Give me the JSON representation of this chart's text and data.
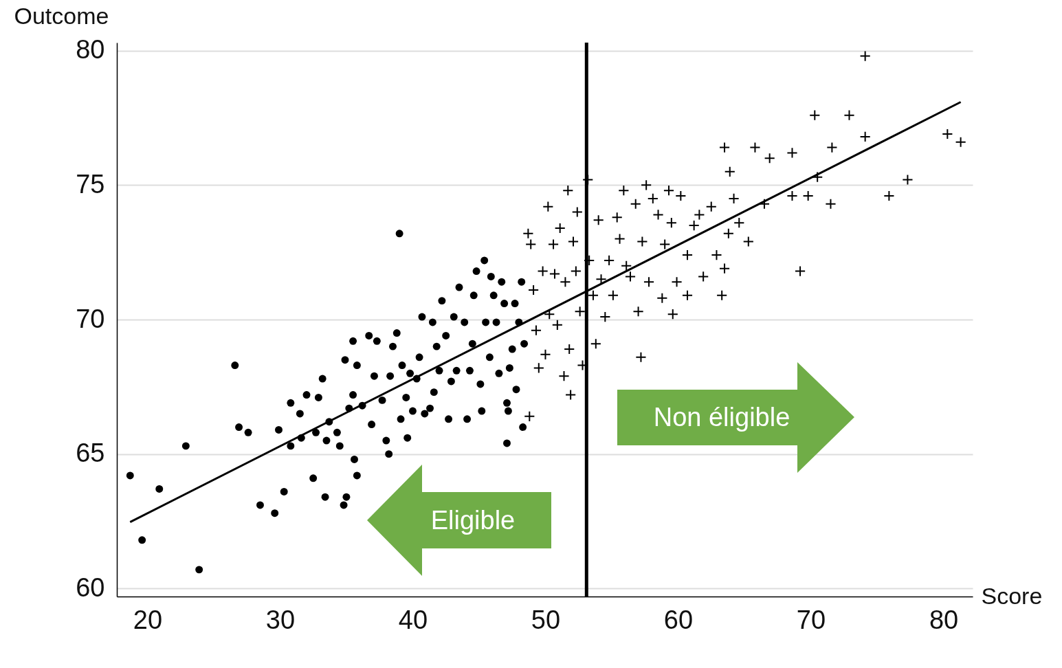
{
  "chart_data": {
    "type": "scatter",
    "xlabel": "Score",
    "ylabel": "Outcome",
    "xlim": [
      17.7,
      82.2
    ],
    "ylim": [
      59.7,
      80.3
    ],
    "xticks": [
      20,
      30,
      40,
      50,
      60,
      70,
      80
    ],
    "yticks": [
      60,
      65,
      70,
      75,
      80
    ],
    "grid": "y",
    "annotations": [
      "Non éligible",
      "Eligible"
    ],
    "ref_lines": [
      {
        "axis": "x",
        "value": 53.1,
        "color": "#000000"
      }
    ],
    "series": [
      {
        "marker": "circle",
        "color": "#000000",
        "x": [
          18.7,
          19.6,
          20.9,
          22.9,
          23.9,
          26.6,
          26.9,
          27.6,
          28.5,
          29.6,
          29.9,
          30.3,
          30.8,
          30.8,
          31.5,
          31.6,
          32.0,
          32.5,
          32.7,
          32.9,
          33.2,
          33.4,
          33.5,
          33.7,
          34.3,
          34.5,
          34.8,
          34.9,
          35.0,
          35.2,
          35.5,
          35.5,
          35.6,
          35.8,
          35.8,
          36.2,
          36.7,
          36.9,
          37.1,
          37.3,
          37.7,
          38.0,
          38.2,
          38.3,
          38.5,
          38.8,
          39.0,
          39.1,
          39.2,
          39.5,
          39.6,
          39.8,
          40.0,
          40.3,
          40.5,
          40.7,
          40.9,
          41.3,
          41.5,
          41.6,
          41.8,
          42.0,
          42.2,
          42.5,
          42.7,
          42.9,
          43.1,
          43.3,
          43.5,
          43.9,
          44.1,
          44.3,
          44.5,
          44.6,
          44.8,
          45.1,
          45.2,
          45.4,
          45.5,
          45.8,
          45.9,
          46.1,
          46.3,
          46.5,
          46.7,
          46.9,
          47.1,
          47.1,
          47.2,
          47.3,
          47.5,
          47.7,
          47.8,
          48.0,
          48.2,
          48.3,
          48.4
        ],
        "values": [
          64.2,
          61.8,
          63.7,
          65.3,
          60.7,
          68.3,
          66.0,
          65.8,
          63.1,
          62.8,
          65.9,
          63.6,
          65.3,
          66.9,
          66.5,
          65.6,
          67.2,
          64.1,
          65.8,
          67.1,
          67.8,
          63.4,
          65.5,
          66.2,
          65.8,
          65.3,
          63.1,
          68.5,
          63.4,
          66.7,
          69.2,
          67.2,
          64.8,
          68.3,
          64.2,
          66.8,
          69.4,
          66.1,
          67.9,
          69.2,
          67.0,
          65.5,
          65.0,
          67.9,
          69.0,
          69.5,
          73.2,
          66.3,
          68.3,
          67.1,
          65.6,
          68.0,
          66.6,
          67.8,
          68.6,
          70.1,
          66.5,
          66.7,
          69.9,
          67.3,
          69.0,
          68.1,
          70.7,
          69.4,
          66.3,
          67.7,
          70.1,
          68.1,
          71.2,
          69.9,
          66.3,
          68.1,
          69.1,
          70.9,
          71.8,
          67.6,
          66.6,
          72.2,
          69.9,
          68.6,
          71.6,
          70.9,
          69.9,
          68.0,
          71.4,
          70.6,
          65.4,
          66.9,
          66.6,
          68.2,
          68.9,
          70.6,
          67.4,
          69.9,
          71.4,
          66.0,
          69.1
        ]
      },
      {
        "marker": "cross",
        "color": "#000000",
        "x": [
          48.7,
          48.8,
          48.9,
          49.1,
          49.3,
          49.5,
          49.8,
          50.0,
          50.2,
          50.3,
          50.6,
          50.7,
          50.9,
          51.1,
          51.4,
          51.5,
          51.7,
          51.8,
          51.9,
          52.1,
          52.3,
          52.4,
          52.6,
          52.8,
          53.2,
          53.3,
          53.6,
          53.8,
          54.0,
          54.2,
          54.5,
          54.8,
          55.1,
          55.4,
          55.6,
          55.9,
          56.1,
          56.4,
          56.8,
          57.0,
          57.2,
          57.3,
          57.6,
          57.8,
          58.1,
          58.5,
          58.8,
          59.0,
          59.3,
          59.5,
          59.6,
          59.9,
          60.2,
          60.7,
          60.7,
          61.2,
          61.6,
          61.9,
          62.5,
          62.9,
          63.3,
          63.5,
          63.5,
          63.8,
          63.9,
          64.2,
          64.6,
          65.3,
          65.8,
          66.5,
          66.9,
          68.6,
          68.6,
          69.2,
          69.8,
          70.3,
          70.5,
          71.6,
          71.5,
          72.9,
          74.1,
          74.1,
          75.9,
          77.3,
          80.3,
          81.3
        ],
        "values": [
          73.2,
          66.4,
          72.8,
          71.1,
          69.6,
          68.2,
          71.8,
          68.7,
          74.2,
          70.2,
          72.8,
          71.7,
          69.8,
          73.4,
          67.9,
          71.4,
          74.8,
          68.9,
          67.2,
          72.9,
          71.8,
          74.0,
          70.3,
          68.3,
          75.2,
          72.2,
          70.9,
          69.1,
          73.7,
          71.5,
          70.1,
          72.2,
          70.9,
          73.8,
          73.0,
          74.8,
          72.0,
          71.6,
          74.3,
          70.3,
          68.6,
          72.9,
          75.0,
          71.4,
          74.5,
          73.9,
          70.8,
          72.8,
          74.8,
          73.6,
          70.2,
          71.4,
          74.6,
          72.4,
          70.9,
          73.5,
          73.9,
          71.6,
          74.2,
          72.4,
          70.9,
          76.4,
          71.9,
          73.2,
          75.5,
          74.5,
          73.6,
          72.9,
          76.4,
          74.3,
          76.0,
          76.2,
          74.6,
          71.8,
          74.6,
          77.6,
          75.3,
          76.4,
          74.3,
          77.6,
          79.8,
          76.8,
          74.6,
          75.2,
          76.9,
          76.6
        ]
      },
      {
        "type": "line",
        "color": "#000000",
        "x": [
          18.7,
          81.3
        ],
        "values": [
          62.47,
          78.09
        ]
      }
    ]
  }
}
